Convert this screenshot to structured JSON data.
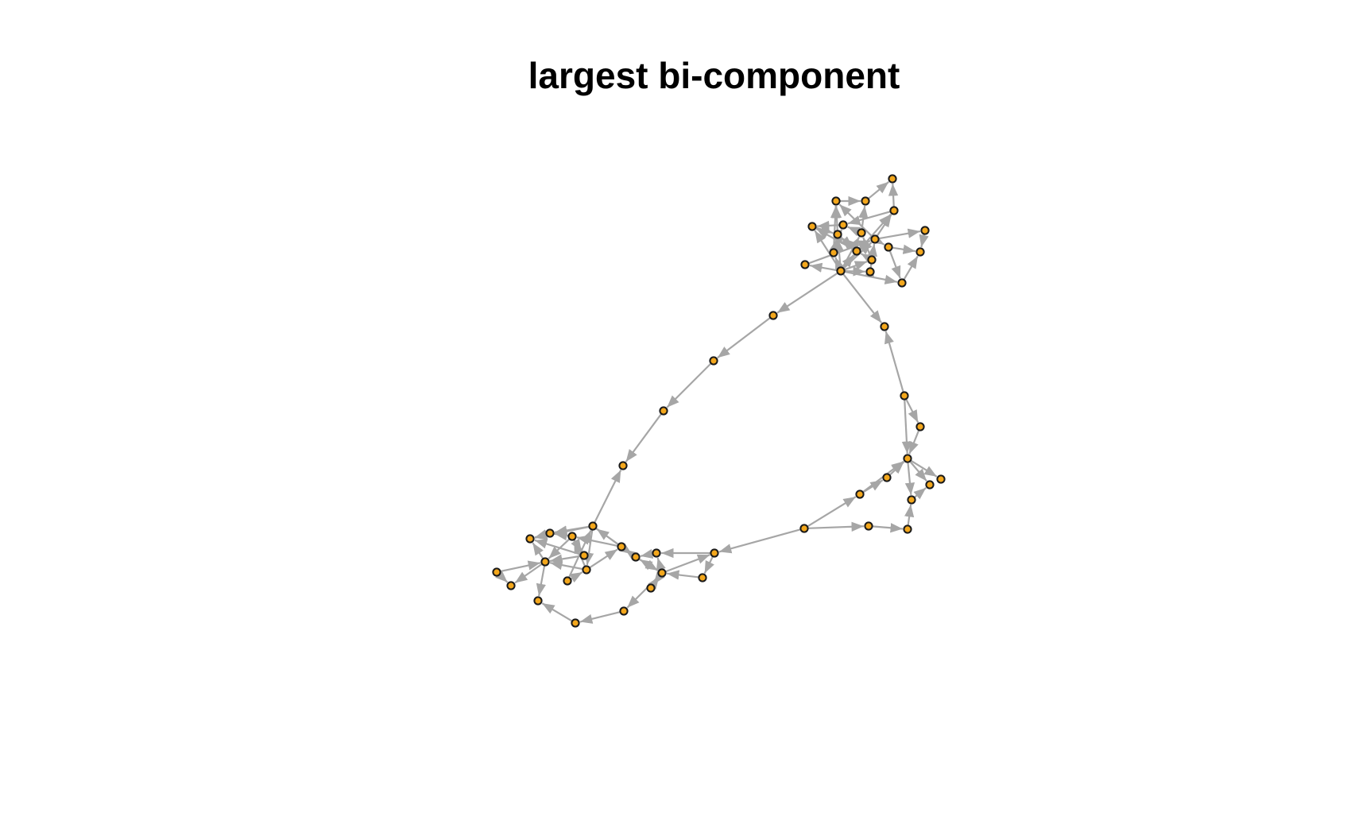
{
  "title": "largest bi-component",
  "colors": {
    "node_fill": "#F3A71C",
    "node_stroke": "#1a1a1a",
    "edge": "#A6A6A6",
    "background": "#FFFFFF"
  },
  "graph": {
    "type": "network",
    "directed": true,
    "node_count": 79,
    "description_visible": "network graph of the largest bi-component"
  }
}
